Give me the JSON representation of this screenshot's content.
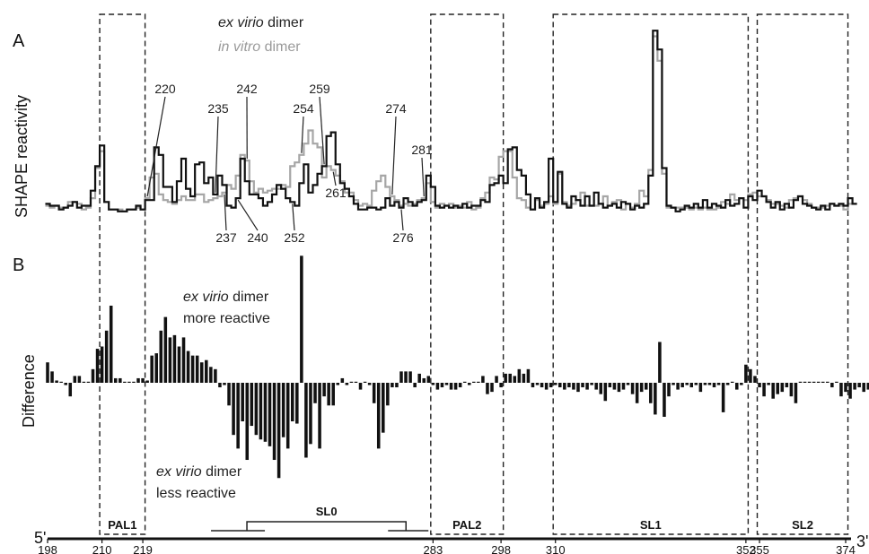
{
  "panels": {
    "a_label": "A",
    "b_label": "B",
    "a_ylabel": "SHAPE reactivity",
    "b_ylabel": "Difference"
  },
  "legend": {
    "series1_italic": "ex virio",
    "series1_rest": " dimer",
    "series2_italic": "in vitro",
    "series2_rest": " dimer"
  },
  "annotations": {
    "more_line1_italic": "ex virio",
    "more_line1_rest": " dimer",
    "more_line2": "more reactive",
    "less_line1_italic": "ex virio",
    "less_line1_rest": " dimer",
    "less_line2": "less reactive"
  },
  "ends": {
    "five_prime": "5'",
    "three_prime": "3'"
  },
  "colors": {
    "ex_virio": "#111111",
    "in_vitro": "#a6a6a6",
    "bars": "#111111"
  },
  "regions": [
    {
      "label": "PAL1",
      "start": 210,
      "end": 219
    },
    {
      "label": "PAL2",
      "start": 283,
      "end": 298
    },
    {
      "label": "SL1",
      "start": 310,
      "end": 352
    },
    {
      "label": "SL2",
      "start": 355,
      "end": 374
    }
  ],
  "sl0": {
    "label": "SL0",
    "start": 238,
    "end": 281
  },
  "peak_labels": [
    "220",
    "235",
    "242",
    "254",
    "259",
    "274",
    "281",
    "237",
    "240",
    "252",
    "261",
    "276"
  ],
  "axis_ticks": [
    "198",
    "210",
    "219",
    "283",
    "298",
    "310",
    "352",
    "355",
    "374"
  ],
  "chart_data": [
    {
      "type": "line",
      "xlabel": "",
      "ylabel": "SHAPE reactivity",
      "xlim": [
        198,
        374
      ],
      "ylim": [
        0,
        1.0
      ],
      "x_start": 198,
      "series": [
        {
          "name": "ex virio dimer",
          "values": [
            0.06,
            0.05,
            0.05,
            0.03,
            0.04,
            0.05,
            0.07,
            0.04,
            0.05,
            0.05,
            0.13,
            0.26,
            0.37,
            0.07,
            0.03,
            0.03,
            0.02,
            0.02,
            0.03,
            0.03,
            0.05,
            0.03,
            0.08,
            0.08,
            0.36,
            0.32,
            0.15,
            0.15,
            0.07,
            0.18,
            0.3,
            0.14,
            0.1,
            0.27,
            0.28,
            0.17,
            0.2,
            0.11,
            0.21,
            0.16,
            0.05,
            0.04,
            0.09,
            0.3,
            0.18,
            0.11,
            0.11,
            0.09,
            0.05,
            0.07,
            0.11,
            0.16,
            0.14,
            0.09,
            0.07,
            0.05,
            0.17,
            0.27,
            0.12,
            0.16,
            0.22,
            0.26,
            0.42,
            0.44,
            0.27,
            0.17,
            0.14,
            0.1,
            0.06,
            0.03,
            0.03,
            0.04,
            0.04,
            0.03,
            0.04,
            0.09,
            0.05,
            0.07,
            0.04,
            0.09,
            0.07,
            0.05,
            0.07,
            0.08,
            0.21,
            0.15,
            0.05,
            0.04,
            0.05,
            0.04,
            0.05,
            0.04,
            0.06,
            0.04,
            0.05,
            0.05,
            0.08,
            0.07,
            0.16,
            0.17,
            0.21,
            0.17,
            0.35,
            0.36,
            0.24,
            0.21,
            0.11,
            0.03,
            0.09,
            0.04,
            0.07,
            0.3,
            0.07,
            0.23,
            0.06,
            0.04,
            0.1,
            0.08,
            0.05,
            0.1,
            0.05,
            0.12,
            0.06,
            0.04,
            0.05,
            0.06,
            0.04,
            0.07,
            0.06,
            0.03,
            0.05,
            0.04,
            0.06,
            0.21,
            0.98,
            0.88,
            0.25,
            0.05,
            0.04,
            0.02,
            0.03,
            0.05,
            0.04,
            0.06,
            0.04,
            0.08,
            0.04,
            0.06,
            0.05,
            0.04,
            0.08,
            0.05,
            0.06,
            0.09,
            0.04,
            0.1,
            0.08,
            0.13,
            0.1,
            0.07,
            0.04,
            0.07,
            0.03,
            0.06,
            0.04,
            0.08,
            0.1,
            0.06,
            0.05,
            0.04,
            0.03,
            0.05,
            0.03,
            0.06,
            0.05,
            0.06,
            0.05,
            0.09,
            0.06
          ]
        },
        {
          "name": "in vitro dimer",
          "values": [
            0.05,
            0.04,
            0.05,
            0.04,
            0.04,
            0.07,
            0.07,
            0.06,
            0.03,
            0.04,
            0.09,
            0.25,
            0.34,
            0.07,
            0.03,
            0.03,
            0.03,
            0.02,
            0.03,
            0.03,
            0.04,
            0.03,
            0.09,
            0.2,
            0.22,
            0.11,
            0.08,
            0.07,
            0.06,
            0.08,
            0.1,
            0.08,
            0.08,
            0.11,
            0.11,
            0.07,
            0.08,
            0.09,
            0.1,
            0.12,
            0.16,
            0.14,
            0.21,
            0.32,
            0.29,
            0.18,
            0.12,
            0.14,
            0.12,
            0.13,
            0.14,
            0.14,
            0.16,
            0.15,
            0.26,
            0.28,
            0.32,
            0.38,
            0.45,
            0.38,
            0.36,
            0.2,
            0.26,
            0.24,
            0.21,
            0.18,
            0.12,
            0.12,
            0.08,
            0.05,
            0.06,
            0.05,
            0.13,
            0.18,
            0.21,
            0.15,
            0.1,
            0.08,
            0.05,
            0.06,
            0.05,
            0.06,
            0.08,
            0.09,
            0.17,
            0.07,
            0.04,
            0.06,
            0.05,
            0.06,
            0.04,
            0.05,
            0.04,
            0.07,
            0.03,
            0.04,
            0.09,
            0.12,
            0.2,
            0.19,
            0.31,
            0.34,
            0.34,
            0.2,
            0.09,
            0.08,
            0.04,
            0.03,
            0.08,
            0.05,
            0.06,
            0.1,
            0.06,
            0.22,
            0.07,
            0.05,
            0.06,
            0.08,
            0.12,
            0.05,
            0.05,
            0.05,
            0.06,
            0.1,
            0.05,
            0.07,
            0.08,
            0.03,
            0.06,
            0.04,
            0.06,
            0.13,
            0.1,
            0.24,
            0.95,
            0.82,
            0.22,
            0.04,
            0.04,
            0.04,
            0.04,
            0.04,
            0.03,
            0.04,
            0.03,
            0.04,
            0.03,
            0.03,
            0.04,
            0.07,
            0.06,
            0.11,
            0.08,
            0.09,
            0.08,
            0.11,
            0.12,
            0.1,
            0.1,
            0.08,
            0.06,
            0.06,
            0.05,
            0.04,
            0.08,
            0.09,
            0.1,
            0.08,
            0.06,
            0.04,
            0.04,
            0.04,
            0.05,
            0.06,
            0.05,
            0.05,
            0.03,
            0.06
          ]
        }
      ]
    },
    {
      "type": "bar",
      "xlabel": "",
      "ylabel": "Difference",
      "xlim": [
        198,
        374
      ],
      "ylim": [
        -0.52,
        0.76
      ],
      "x_start": 198,
      "series": [
        {
          "name": "",
          "values": [
            0.09,
            0.05,
            0.01,
            0.0,
            -0.01,
            -0.06,
            0.03,
            0.03,
            0.0,
            0.0,
            0.06,
            0.15,
            0.16,
            0.23,
            0.34,
            0.02,
            0.02,
            0.0,
            0.0,
            0.0,
            0.02,
            0.02,
            0.01,
            0.12,
            0.13,
            0.23,
            0.29,
            0.2,
            0.21,
            0.16,
            0.2,
            0.14,
            0.12,
            0.12,
            0.09,
            0.1,
            0.07,
            0.06,
            -0.02,
            -0.01,
            -0.1,
            -0.23,
            -0.29,
            -0.17,
            -0.34,
            -0.19,
            -0.23,
            -0.25,
            -0.26,
            -0.28,
            -0.34,
            -0.42,
            -0.24,
            -0.29,
            -0.17,
            -0.18,
            0.56,
            -0.33,
            -0.27,
            -0.09,
            -0.29,
            -0.06,
            -0.1,
            -0.1,
            -0.01,
            0.02,
            -0.01,
            0.0,
            0.0,
            -0.03,
            0.0,
            -0.01,
            -0.09,
            -0.29,
            -0.22,
            -0.1,
            -0.02,
            -0.02,
            0.05,
            0.05,
            0.05,
            -0.02,
            0.04,
            0.02,
            0.03,
            -0.01,
            -0.03,
            -0.02,
            -0.01,
            -0.03,
            -0.03,
            -0.02,
            0.0,
            -0.01,
            0.0,
            0.0,
            0.03,
            -0.05,
            -0.04,
            0.03,
            -0.02,
            0.04,
            0.04,
            0.03,
            0.06,
            0.04,
            0.06,
            -0.02,
            -0.01,
            -0.02,
            -0.03,
            -0.02,
            -0.01,
            -0.02,
            -0.03,
            -0.02,
            -0.03,
            -0.04,
            -0.02,
            -0.03,
            -0.01,
            -0.03,
            -0.05,
            -0.08,
            -0.02,
            -0.03,
            -0.04,
            -0.03,
            -0.01,
            -0.05,
            -0.09,
            -0.04,
            -0.03,
            -0.09,
            -0.14,
            0.18,
            -0.15,
            -0.06,
            -0.01,
            -0.03,
            -0.02,
            -0.01,
            -0.02,
            -0.01,
            -0.04,
            -0.01,
            -0.01,
            -0.02,
            -0.01,
            -0.13,
            -0.01,
            0.0,
            -0.03,
            -0.01,
            0.08,
            0.06,
            0.03,
            -0.02,
            -0.06,
            -0.01,
            -0.07,
            -0.05,
            -0.04,
            -0.02,
            -0.06,
            -0.09,
            0.0,
            0.0,
            0.0,
            0.0,
            0.0,
            0.0,
            0.0,
            -0.02,
            0.0,
            -0.06,
            -0.04,
            -0.07,
            -0.03,
            -0.02,
            -0.04,
            -0.03,
            -0.05
          ]
        }
      ]
    }
  ]
}
